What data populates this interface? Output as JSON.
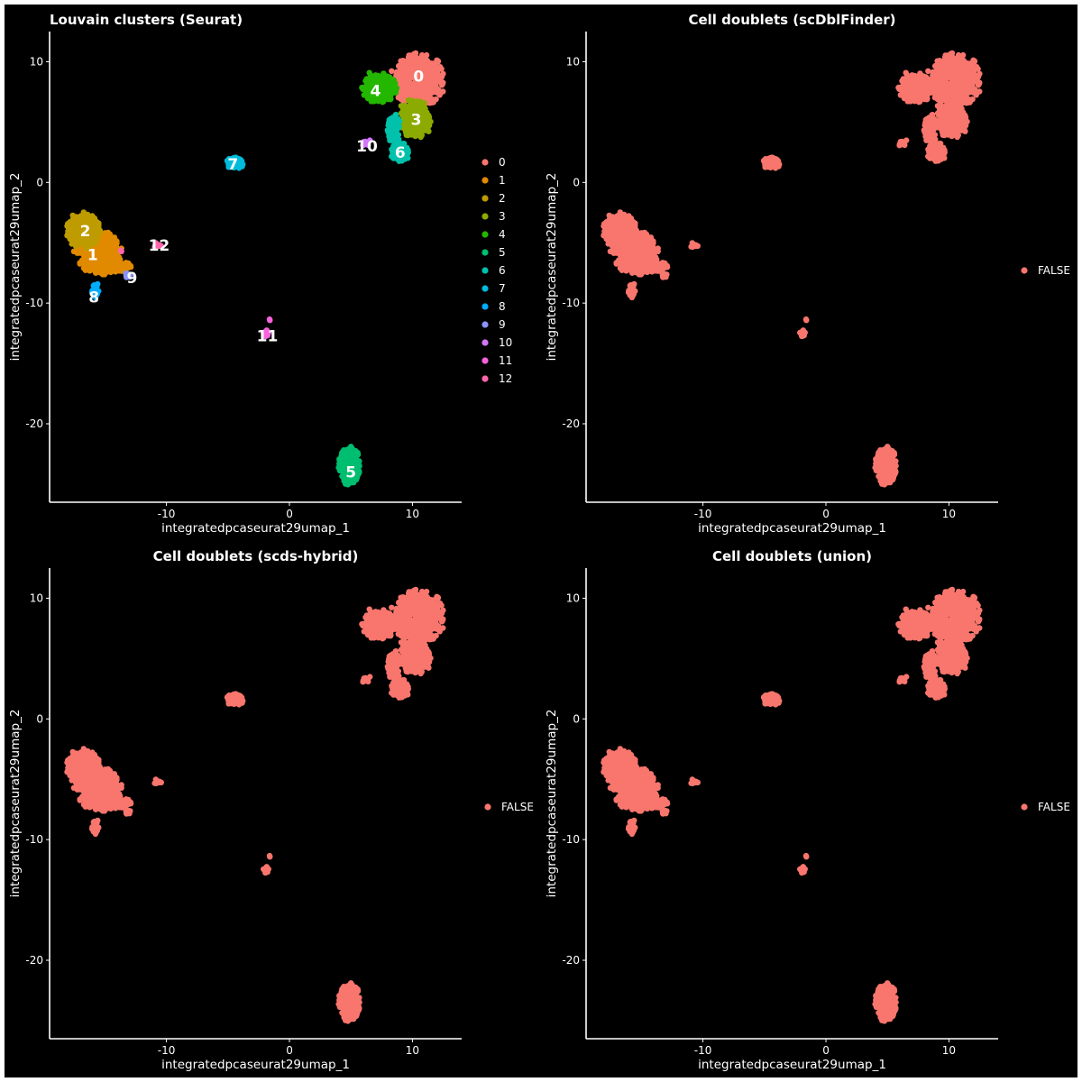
{
  "chart_data": [
    {
      "type": "scatter",
      "title": "Louvain clusters (Seurat)",
      "title_align": "left",
      "xlabel": "integratedpcaseurat29umap_1",
      "ylabel": "integratedpcaseurat29umap_2",
      "xlim": [
        -19.5,
        14
      ],
      "ylim": [
        -26.5,
        12.5
      ],
      "xticks": [
        -10,
        0,
        10
      ],
      "yticks": [
        -20,
        -10,
        0,
        10
      ],
      "legend_position": "right",
      "legend": [
        "0",
        "1",
        "2",
        "3",
        "4",
        "5",
        "6",
        "7",
        "8",
        "9",
        "10",
        "11",
        "12"
      ],
      "series": [
        {
          "name": "0",
          "color": "#F8766D",
          "clusters": [
            {
              "x": 10.5,
              "y": 8.5,
              "sx": 1.4,
              "sy": 1.4,
              "n": 600
            }
          ],
          "label": {
            "text": "0",
            "x": 10.5,
            "y": 8.8
          }
        },
        {
          "name": "1",
          "color": "#E18A00",
          "clusters": [
            {
              "x": -15.5,
              "y": -5.8,
              "sx": 1.2,
              "sy": 1.2,
              "n": 500
            },
            {
              "x": -13.8,
              "y": -7.0,
              "sx": 0.6,
              "sy": 0.3,
              "n": 90
            }
          ],
          "label": {
            "text": "1",
            "x": -16.0,
            "y": -6.0
          }
        },
        {
          "name": "2",
          "color": "#BE9C00",
          "clusters": [
            {
              "x": -16.8,
              "y": -4.0,
              "sx": 0.9,
              "sy": 1.0,
              "n": 400
            }
          ],
          "label": {
            "text": "2",
            "x": -16.6,
            "y": -4.0
          }
        },
        {
          "name": "3",
          "color": "#8CAB00",
          "clusters": [
            {
              "x": 10.3,
              "y": 5.3,
              "sx": 0.8,
              "sy": 1.1,
              "n": 350
            }
          ],
          "label": {
            "text": "3",
            "x": 10.3,
            "y": 5.2
          }
        },
        {
          "name": "4",
          "color": "#24B700",
          "clusters": [
            {
              "x": 7.3,
              "y": 7.8,
              "sx": 0.9,
              "sy": 0.8,
              "n": 320
            }
          ],
          "label": {
            "text": "4",
            "x": 7.0,
            "y": 7.6
          }
        },
        {
          "name": "5",
          "color": "#00BE70",
          "clusters": [
            {
              "x": 4.9,
              "y": -23.5,
              "sx": 0.6,
              "sy": 1.0,
              "n": 300
            }
          ],
          "label": {
            "text": "5",
            "x": 5.0,
            "y": -24.0
          }
        },
        {
          "name": "6",
          "color": "#00C1AB",
          "clusters": [
            {
              "x": 9.0,
              "y": 2.5,
              "sx": 0.5,
              "sy": 0.5,
              "n": 160
            },
            {
              "x": 8.5,
              "y": 4.5,
              "sx": 0.35,
              "sy": 0.9,
              "n": 90
            }
          ],
          "label": {
            "text": "6",
            "x": 9.0,
            "y": 2.5
          }
        },
        {
          "name": "7",
          "color": "#00BBDA",
          "clusters": [
            {
              "x": -4.4,
              "y": 1.6,
              "sx": 0.5,
              "sy": 0.3,
              "n": 140
            }
          ],
          "label": {
            "text": "7",
            "x": -4.6,
            "y": 1.5
          }
        },
        {
          "name": "8",
          "color": "#00ACFC",
          "clusters": [
            {
              "x": -15.8,
              "y": -8.9,
              "sx": 0.2,
              "sy": 0.4,
              "n": 40
            }
          ],
          "label": {
            "text": "8",
            "x": -15.9,
            "y": -9.5
          }
        },
        {
          "name": "9",
          "color": "#8B93FF",
          "clusters": [
            {
              "x": -13.2,
              "y": -7.6,
              "sx": 0.3,
              "sy": 0.2,
              "n": 15
            }
          ],
          "label": {
            "text": "9",
            "x": -12.8,
            "y": -7.9
          }
        },
        {
          "name": "10",
          "color": "#D575FE",
          "clusters": [
            {
              "x": 6.3,
              "y": 3.3,
              "sx": 0.3,
              "sy": 0.2,
              "n": 14
            }
          ],
          "label": {
            "text": "10",
            "x": 6.3,
            "y": 3.0
          }
        },
        {
          "name": "11",
          "color": "#F962DD",
          "clusters": [
            {
              "x": -1.9,
              "y": -12.5,
              "sx": 0.15,
              "sy": 0.2,
              "n": 10
            },
            {
              "x": -1.6,
              "y": -11.4,
              "sx": 0.05,
              "sy": 0.05,
              "n": 2
            }
          ],
          "label": {
            "text": "11",
            "x": -1.8,
            "y": -12.7
          }
        },
        {
          "name": "12",
          "color": "#FF65AC",
          "clusters": [
            {
              "x": -10.8,
              "y": -5.2,
              "sx": 0.25,
              "sy": 0.15,
              "n": 10
            },
            {
              "x": -13.7,
              "y": -5.7,
              "sx": 0.05,
              "sy": 0.05,
              "n": 2
            }
          ],
          "label": {
            "text": "12",
            "x": -10.6,
            "y": -5.2
          }
        }
      ]
    },
    {
      "type": "scatter",
      "title": "Cell doublets (scDblFinder)",
      "title_align": "center",
      "xlabel": "integratedpcaseurat29umap_1",
      "ylabel": "integratedpcaseurat29umap_2",
      "xlim": [
        -19.5,
        14
      ],
      "ylim": [
        -26.5,
        12.5
      ],
      "xticks": [
        -10,
        0,
        10
      ],
      "yticks": [
        -20,
        -10,
        0,
        10
      ],
      "legend_position": "right",
      "legend": [
        "FALSE"
      ],
      "series": [
        {
          "name": "FALSE",
          "color": "#F8766D"
        }
      ]
    },
    {
      "type": "scatter",
      "title": "Cell doublets (scds-hybrid)",
      "title_align": "center",
      "xlabel": "integratedpcaseurat29umap_1",
      "ylabel": "integratedpcaseurat29umap_2",
      "xlim": [
        -19.5,
        14
      ],
      "ylim": [
        -26.5,
        12.5
      ],
      "xticks": [
        -10,
        0,
        10
      ],
      "yticks": [
        -20,
        -10,
        0,
        10
      ],
      "legend_position": "right",
      "legend": [
        "FALSE"
      ],
      "series": [
        {
          "name": "FALSE",
          "color": "#F8766D"
        }
      ]
    },
    {
      "type": "scatter",
      "title": "Cell doublets (union)",
      "title_align": "center",
      "xlabel": "integratedpcaseurat29umap_1",
      "ylabel": "integratedpcaseurat29umap_2",
      "xlim": [
        -19.5,
        14
      ],
      "ylim": [
        -26.5,
        12.5
      ],
      "xticks": [
        -10,
        0,
        10
      ],
      "yticks": [
        -20,
        -10,
        0,
        10
      ],
      "legend_position": "right",
      "legend": [
        "FALSE"
      ],
      "series": [
        {
          "name": "FALSE",
          "color": "#F8766D"
        }
      ]
    }
  ]
}
